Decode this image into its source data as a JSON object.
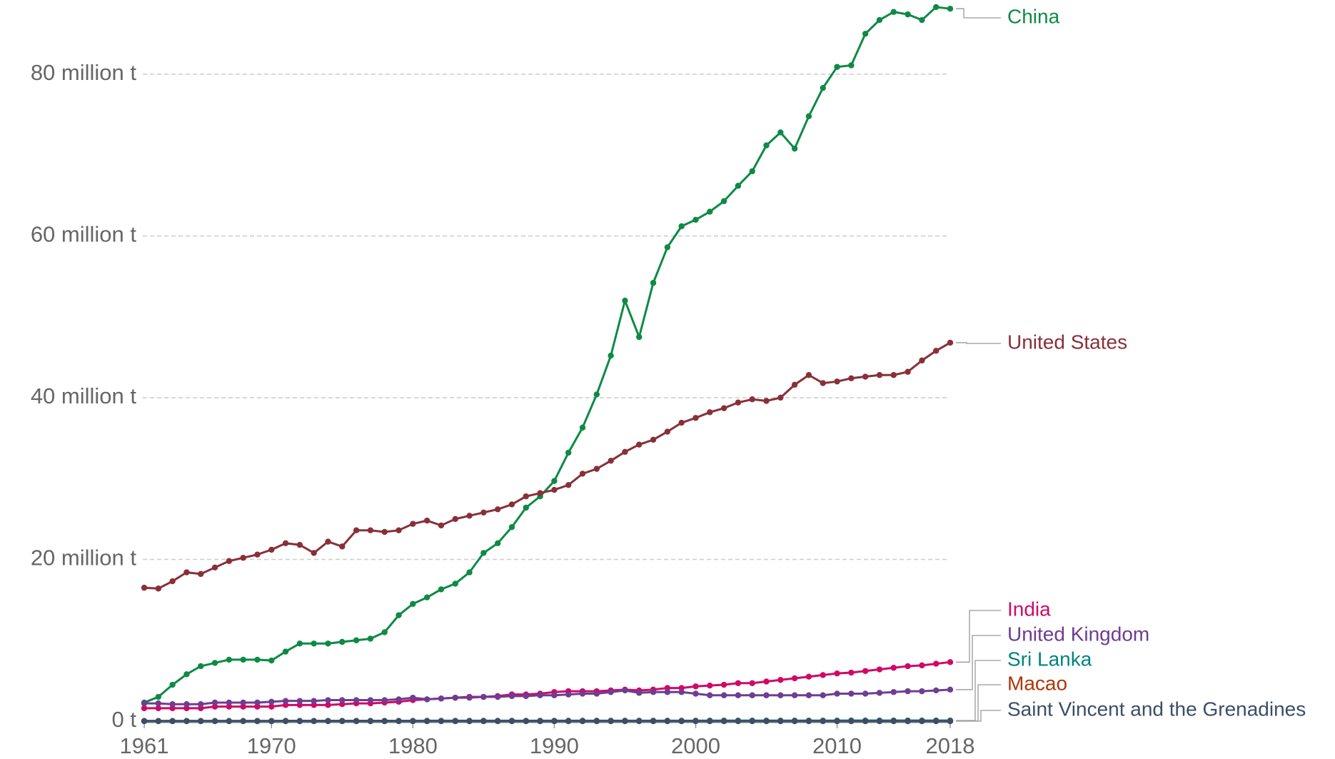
{
  "chart_data": {
    "type": "line",
    "x": [
      1961,
      1962,
      1963,
      1964,
      1965,
      1966,
      1967,
      1968,
      1969,
      1970,
      1971,
      1972,
      1973,
      1974,
      1975,
      1976,
      1977,
      1978,
      1979,
      1980,
      1981,
      1982,
      1983,
      1984,
      1985,
      1986,
      1987,
      1988,
      1989,
      1990,
      1991,
      1992,
      1993,
      1994,
      1995,
      1996,
      1997,
      1998,
      1999,
      2000,
      2001,
      2002,
      2003,
      2004,
      2005,
      2006,
      2007,
      2008,
      2009,
      2010,
      2011,
      2012,
      2013,
      2014,
      2015,
      2016,
      2017,
      2018
    ],
    "xlim": [
      1961,
      2018
    ],
    "xticks": [
      1961,
      1970,
      1980,
      1990,
      2000,
      2010,
      2018
    ],
    "ylim": [
      0,
      89
    ],
    "yticks": [
      {
        "value": 0,
        "label": "0 t"
      },
      {
        "value": 20,
        "label": "20 million t"
      },
      {
        "value": 40,
        "label": "40 million t"
      },
      {
        "value": 60,
        "label": "60 million t"
      },
      {
        "value": 80,
        "label": "80 million t"
      }
    ],
    "grid": true,
    "series": [
      {
        "name": "China",
        "color": "#0e8a45",
        "values": [
          2.3,
          3.0,
          4.5,
          5.8,
          6.8,
          7.2,
          7.6,
          7.6,
          7.6,
          7.5,
          8.6,
          9.6,
          9.6,
          9.6,
          9.8,
          10.0,
          10.2,
          11.0,
          13.1,
          14.5,
          15.3,
          16.3,
          17.0,
          18.4,
          20.8,
          22.0,
          24.0,
          26.4,
          27.8,
          29.7,
          33.2,
          36.3,
          40.4,
          45.2,
          52.0,
          47.5,
          54.2,
          58.6,
          61.2,
          62.0,
          63.0,
          64.3,
          66.2,
          68.0,
          71.2,
          72.8,
          70.8,
          74.8,
          78.3,
          80.9,
          81.1,
          85.0,
          86.7,
          87.7,
          87.4,
          86.7,
          88.3,
          88.1
        ]
      },
      {
        "name": "United States",
        "color": "#883039",
        "values": [
          16.5,
          16.4,
          17.3,
          18.4,
          18.2,
          19.0,
          19.8,
          20.2,
          20.6,
          21.2,
          22.0,
          21.8,
          20.8,
          22.2,
          21.6,
          23.6,
          23.6,
          23.4,
          23.6,
          24.4,
          24.8,
          24.2,
          25.0,
          25.4,
          25.8,
          26.2,
          26.8,
          27.8,
          28.2,
          28.6,
          29.2,
          30.6,
          31.2,
          32.2,
          33.3,
          34.2,
          34.8,
          35.8,
          36.9,
          37.5,
          38.2,
          38.7,
          39.4,
          39.8,
          39.6,
          40.0,
          41.6,
          42.8,
          41.8,
          42.0,
          42.4,
          42.6,
          42.8,
          42.8,
          43.2,
          44.6,
          45.8,
          46.8
        ]
      },
      {
        "name": "India",
        "color": "#cf0a66",
        "values": [
          1.6,
          1.6,
          1.6,
          1.6,
          1.6,
          1.8,
          1.8,
          1.8,
          1.8,
          1.8,
          2.0,
          2.0,
          2.0,
          2.0,
          2.1,
          2.2,
          2.2,
          2.3,
          2.4,
          2.6,
          2.7,
          2.8,
          2.9,
          3.0,
          3.0,
          3.1,
          3.3,
          3.3,
          3.4,
          3.6,
          3.7,
          3.7,
          3.7,
          3.8,
          3.9,
          3.8,
          3.9,
          4.1,
          4.1,
          4.3,
          4.4,
          4.5,
          4.7,
          4.7,
          4.9,
          5.1,
          5.3,
          5.5,
          5.7,
          5.9,
          6.0,
          6.2,
          6.4,
          6.6,
          6.8,
          6.9,
          7.1,
          7.3
        ]
      },
      {
        "name": "United Kingdom",
        "color": "#6d3e91",
        "values": [
          2.2,
          2.2,
          2.1,
          2.1,
          2.1,
          2.3,
          2.3,
          2.3,
          2.3,
          2.4,
          2.5,
          2.5,
          2.5,
          2.6,
          2.6,
          2.6,
          2.6,
          2.6,
          2.7,
          2.9,
          2.7,
          2.8,
          2.9,
          2.9,
          3.0,
          3.0,
          3.1,
          3.1,
          3.2,
          3.2,
          3.3,
          3.4,
          3.4,
          3.6,
          3.8,
          3.5,
          3.6,
          3.6,
          3.6,
          3.4,
          3.2,
          3.2,
          3.2,
          3.2,
          3.2,
          3.2,
          3.2,
          3.2,
          3.2,
          3.4,
          3.4,
          3.4,
          3.5,
          3.6,
          3.7,
          3.7,
          3.8,
          3.9
        ]
      },
      {
        "name": "Sri Lanka",
        "color": "#00847e",
        "values": [
          0.03,
          0.03,
          0.03,
          0.03,
          0.03,
          0.03,
          0.03,
          0.03,
          0.03,
          0.03,
          0.04,
          0.04,
          0.04,
          0.04,
          0.04,
          0.04,
          0.04,
          0.04,
          0.04,
          0.04,
          0.05,
          0.05,
          0.05,
          0.05,
          0.05,
          0.05,
          0.05,
          0.05,
          0.05,
          0.05,
          0.06,
          0.06,
          0.06,
          0.06,
          0.06,
          0.06,
          0.06,
          0.06,
          0.06,
          0.06,
          0.07,
          0.07,
          0.07,
          0.07,
          0.07,
          0.07,
          0.07,
          0.07,
          0.07,
          0.07,
          0.08,
          0.08,
          0.08,
          0.08,
          0.08,
          0.08,
          0.08,
          0.08
        ]
      },
      {
        "name": "Macao",
        "color": "#b13507",
        "values": [
          0.01,
          0.01,
          0.01,
          0.01,
          0.01,
          0.01,
          0.01,
          0.01,
          0.01,
          0.01,
          0.01,
          0.01,
          0.01,
          0.01,
          0.01,
          0.01,
          0.01,
          0.01,
          0.01,
          0.01,
          0.01,
          0.01,
          0.01,
          0.01,
          0.01,
          0.01,
          0.01,
          0.01,
          0.01,
          0.01,
          0.01,
          0.01,
          0.01,
          0.01,
          0.01,
          0.01,
          0.01,
          0.01,
          0.01,
          0.01,
          0.01,
          0.01,
          0.01,
          0.01,
          0.01,
          0.01,
          0.01,
          0.01,
          0.01,
          0.01,
          0.01,
          0.01,
          0.01,
          0.01,
          0.01,
          0.01,
          0.01,
          0.01
        ]
      },
      {
        "name": "Saint Vincent and the Grenadines",
        "color": "#3c4e66",
        "values": [
          0.001,
          0.001,
          0.001,
          0.001,
          0.001,
          0.001,
          0.001,
          0.001,
          0.001,
          0.001,
          0.001,
          0.001,
          0.001,
          0.001,
          0.001,
          0.001,
          0.001,
          0.001,
          0.001,
          0.001,
          0.001,
          0.001,
          0.001,
          0.001,
          0.001,
          0.001,
          0.001,
          0.001,
          0.001,
          0.001,
          0.001,
          0.001,
          0.001,
          0.001,
          0.001,
          0.001,
          0.001,
          0.001,
          0.001,
          0.001,
          0.001,
          0.001,
          0.001,
          0.001,
          0.001,
          0.001,
          0.001,
          0.001,
          0.001,
          0.001,
          0.001,
          0.001,
          0.001,
          0.001,
          0.001,
          0.001,
          0.001,
          0.001
        ]
      }
    ]
  }
}
